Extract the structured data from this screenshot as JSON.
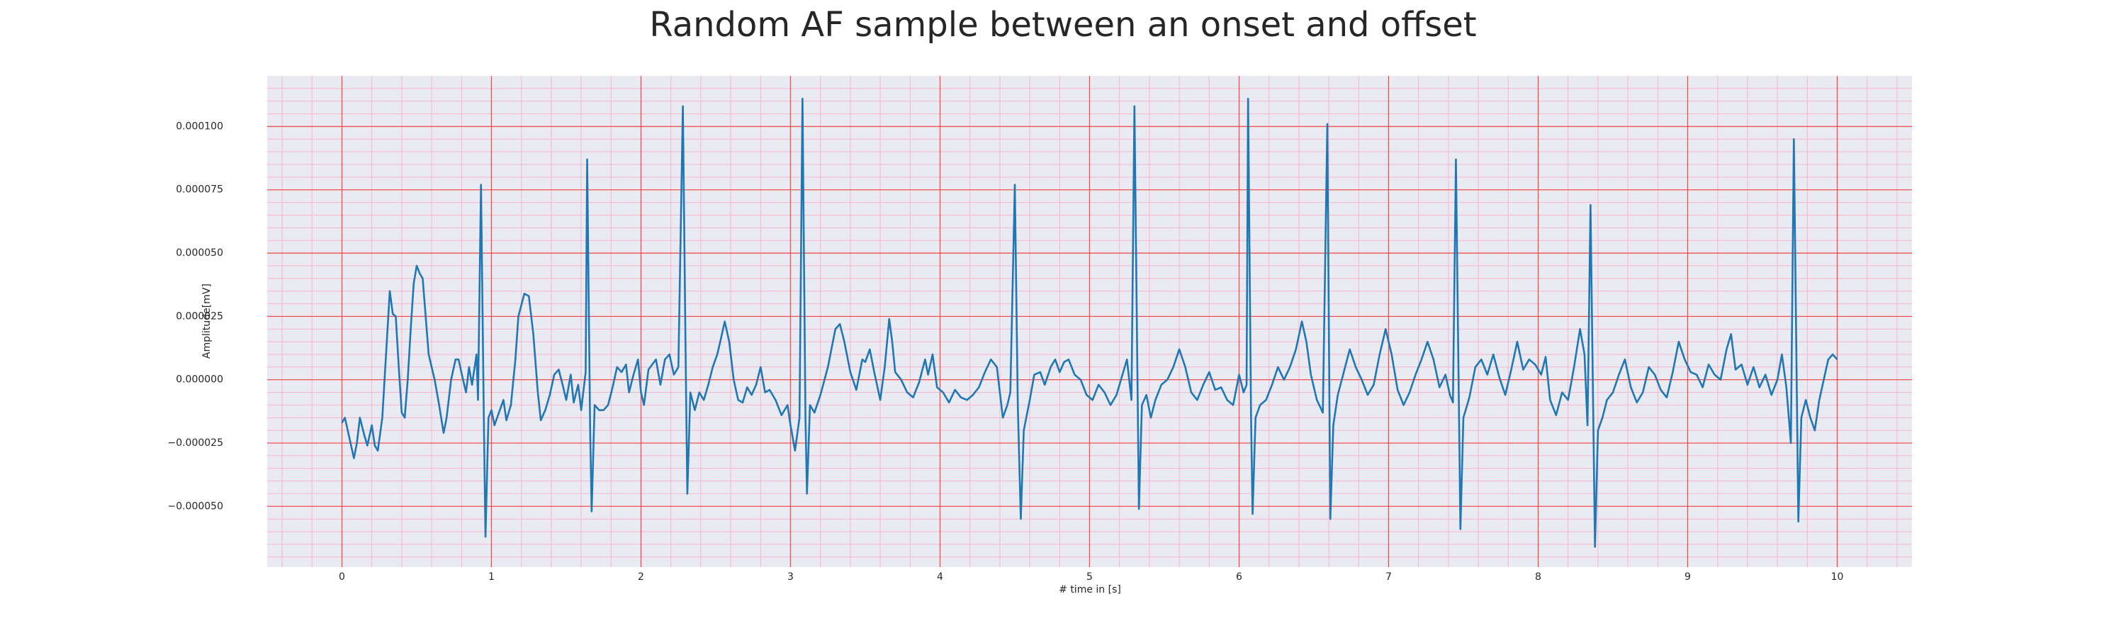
{
  "chart_data": {
    "type": "line",
    "title": "Random AF sample between an onset and offset",
    "xlabel": "# time in [s]",
    "ylabel": "Amplitude[mV]",
    "xlim": [
      -0.5,
      10.5
    ],
    "ylim": [
      -7.4e-05,
      0.00012
    ],
    "xticks": [
      0,
      1,
      2,
      3,
      4,
      5,
      6,
      7,
      8,
      9,
      10
    ],
    "yticks": [
      {
        "value": -5e-05,
        "label": "−0.000050"
      },
      {
        "value": -2.5e-05,
        "label": "−0.000025"
      },
      {
        "value": 0,
        "label": "0.000000"
      },
      {
        "value": 2.5e-05,
        "label": "0.000025"
      },
      {
        "value": 5e-05,
        "label": "0.000050"
      },
      {
        "value": 7.5e-05,
        "label": "0.000075"
      },
      {
        "value": 0.0001,
        "label": "0.000100"
      }
    ],
    "grid": true,
    "minor_grid": true,
    "background": "#eaeaf2",
    "grid_color": "#f05050",
    "minor_grid_color": "#f4b8c8",
    "x": [
      0,
      0.02,
      0.05,
      0.08,
      0.1,
      0.12,
      0.15,
      0.17,
      0.2,
      0.22,
      0.24,
      0.27,
      0.3,
      0.32,
      0.34,
      0.36,
      0.38,
      0.4,
      0.42,
      0.44,
      0.46,
      0.48,
      0.5,
      0.52,
      0.54,
      0.56,
      0.58,
      0.6,
      0.62,
      0.65,
      0.68,
      0.7,
      0.73,
      0.76,
      0.78,
      0.81,
      0.83,
      0.85,
      0.87,
      0.9,
      0.91,
      0.93,
      0.95,
      0.96,
      0.98,
      1.0,
      1.02,
      1.05,
      1.08,
      1.1,
      1.13,
      1.16,
      1.18,
      1.22,
      1.25,
      1.28,
      1.31,
      1.33,
      1.36,
      1.39,
      1.42,
      1.45,
      1.48,
      1.5,
      1.53,
      1.55,
      1.58,
      1.6,
      1.63,
      1.64,
      1.66,
      1.67,
      1.69,
      1.72,
      1.75,
      1.78,
      1.81,
      1.84,
      1.87,
      1.9,
      1.92,
      1.95,
      1.98,
      2.0,
      2.02,
      2.05,
      2.1,
      2.13,
      2.16,
      2.19,
      2.22,
      2.25,
      2.28,
      2.3,
      2.31,
      2.33,
      2.36,
      2.39,
      2.42,
      2.45,
      2.48,
      2.51,
      2.53,
      2.56,
      2.59,
      2.62,
      2.65,
      2.68,
      2.71,
      2.74,
      2.77,
      2.8,
      2.83,
      2.86,
      2.9,
      2.94,
      2.98,
      3.0,
      3.03,
      3.06,
      3.08,
      3.1,
      3.11,
      3.13,
      3.16,
      3.2,
      3.25,
      3.3,
      3.33,
      3.36,
      3.4,
      3.44,
      3.48,
      3.5,
      3.53,
      3.56,
      3.6,
      3.63,
      3.66,
      3.68,
      3.7,
      3.74,
      3.78,
      3.82,
      3.86,
      3.9,
      3.92,
      3.95,
      3.98,
      4.02,
      4.06,
      4.1,
      4.14,
      4.18,
      4.22,
      4.26,
      4.3,
      4.34,
      4.38,
      4.42,
      4.45,
      4.47,
      4.5,
      4.52,
      4.54,
      4.56,
      4.6,
      4.63,
      4.67,
      4.7,
      4.74,
      4.77,
      4.8,
      4.83,
      4.86,
      4.9,
      4.94,
      4.98,
      5.02,
      5.06,
      5.1,
      5.14,
      5.18,
      5.22,
      5.25,
      5.28,
      5.3,
      5.33,
      5.35,
      5.38,
      5.41,
      5.44,
      5.48,
      5.52,
      5.56,
      5.6,
      5.64,
      5.68,
      5.72,
      5.76,
      5.8,
      5.84,
      5.88,
      5.92,
      5.96,
      6.0,
      6.03,
      6.05,
      6.06,
      6.08,
      6.09,
      6.11,
      6.14,
      6.18,
      6.22,
      6.26,
      6.3,
      6.34,
      6.38,
      6.42,
      6.45,
      6.48,
      6.52,
      6.56,
      6.59,
      6.61,
      6.63,
      6.66,
      6.7,
      6.74,
      6.78,
      6.82,
      6.86,
      6.9,
      6.94,
      6.98,
      7.02,
      7.06,
      7.1,
      7.14,
      7.18,
      7.22,
      7.26,
      7.3,
      7.34,
      7.38,
      7.41,
      7.43,
      7.45,
      7.48,
      7.5,
      7.54,
      7.58,
      7.62,
      7.66,
      7.7,
      7.74,
      7.78,
      7.82,
      7.86,
      7.9,
      7.94,
      7.98,
      8.02,
      8.05,
      8.08,
      8.12,
      8.16,
      8.2,
      8.24,
      8.28,
      8.31,
      8.33,
      8.35,
      8.38,
      8.4,
      8.43,
      8.46,
      8.5,
      8.54,
      8.58,
      8.62,
      8.66,
      8.7,
      8.74,
      8.78,
      8.82,
      8.86,
      8.9,
      8.94,
      8.98,
      9.02,
      9.06,
      9.1,
      9.14,
      9.18,
      9.22,
      9.26,
      9.29,
      9.32,
      9.36,
      9.4,
      9.44,
      9.48,
      9.52,
      9.56,
      9.6,
      9.63,
      9.66,
      9.69,
      9.71,
      9.74,
      9.76,
      9.79,
      9.82,
      9.85,
      9.88,
      9.91,
      9.94,
      9.97,
      10.0
    ],
    "series": [
      {
        "color": "#1f77b4",
        "values": [
          -1.7e-05,
          -1.5e-05,
          -2.3e-05,
          -3.1e-05,
          -2.5e-05,
          -1.5e-05,
          -2.2e-05,
          -2.6e-05,
          -1.8e-05,
          -2.6e-05,
          -2.8e-05,
          -1.5e-05,
          1.5e-05,
          3.5e-05,
          2.6e-05,
          2.5e-05,
          5e-06,
          -1.3e-05,
          -1.5e-05,
          0,
          2e-05,
          3.8e-05,
          4.5e-05,
          4.2e-05,
          4e-05,
          2.5e-05,
          1e-05,
          5e-06,
          0,
          -1e-05,
          -2.1e-05,
          -1.5e-05,
          0,
          8e-06,
          8e-06,
          0,
          -5e-06,
          5e-06,
          -2e-06,
          1e-05,
          -8e-06,
          7.7e-05,
          -2e-05,
          -6.2e-05,
          -1.5e-05,
          -1.2e-05,
          -1.8e-05,
          -1.3e-05,
          -8e-06,
          -1.6e-05,
          -1e-05,
          8e-06,
          2.5e-05,
          3.4e-05,
          3.3e-05,
          1.8e-05,
          -5e-06,
          -1.6e-05,
          -1.2e-05,
          -6e-06,
          2e-06,
          4e-06,
          -3e-06,
          -8e-06,
          2e-06,
          -9e-06,
          -2e-06,
          -1.2e-05,
          3e-06,
          8.7e-05,
          -2e-05,
          -5.2e-05,
          -1e-05,
          -1.2e-05,
          -1.2e-05,
          -1e-05,
          -3e-06,
          5e-06,
          3e-06,
          6e-06,
          -5e-06,
          2e-06,
          8e-06,
          -5e-06,
          -1e-05,
          4e-06,
          8e-06,
          -2e-06,
          8e-06,
          1e-05,
          2e-06,
          5e-06,
          0.000108,
          2e-06,
          -4.5e-05,
          -5e-06,
          -1.2e-05,
          -5e-06,
          -8e-06,
          -2e-06,
          5e-06,
          1e-05,
          1.5e-05,
          2.3e-05,
          1.5e-05,
          0,
          -8e-06,
          -9e-06,
          -3e-06,
          -6e-06,
          -2e-06,
          5e-06,
          -5e-06,
          -4e-06,
          -8e-06,
          -1.4e-05,
          -1e-05,
          -1.8e-05,
          -2.8e-05,
          -1.5e-05,
          0.000111,
          -1.5e-05,
          -4.5e-05,
          -1e-05,
          -1.3e-05,
          -6e-06,
          5e-06,
          2e-05,
          2.2e-05,
          1.5e-05,
          3e-06,
          -4e-06,
          8e-06,
          7e-06,
          1.2e-05,
          3e-06,
          -8e-06,
          5e-06,
          2.4e-05,
          1.5e-05,
          3e-06,
          0,
          -5e-06,
          -7e-06,
          -1e-06,
          8e-06,
          2e-06,
          1e-05,
          -3e-06,
          -5e-06,
          -9e-06,
          -4e-06,
          -7e-06,
          -8e-06,
          -6e-06,
          -3e-06,
          3e-06,
          8e-06,
          5e-06,
          -1.5e-05,
          -1e-05,
          -5e-06,
          7.7e-05,
          -1e-05,
          -5.5e-05,
          -2e-05,
          -8e-06,
          2e-06,
          3e-06,
          -2e-06,
          5e-06,
          8e-06,
          3e-06,
          7e-06,
          8e-06,
          2e-06,
          0,
          -6e-06,
          -8e-06,
          -2e-06,
          -5e-06,
          -1e-05,
          -6e-06,
          2e-06,
          8e-06,
          -8e-06,
          0.000108,
          -5.1e-05,
          -1e-05,
          -6e-06,
          -1.5e-05,
          -8e-06,
          -2e-06,
          0,
          5e-06,
          1.2e-05,
          5e-06,
          -5e-06,
          -8e-06,
          -2e-06,
          3e-06,
          -4e-06,
          -3e-06,
          -8e-06,
          -1e-05,
          2e-06,
          -5e-06,
          -2e-06,
          0.000111,
          -1.5e-05,
          -5.3e-05,
          -1.5e-05,
          -1e-05,
          -8e-06,
          -2e-06,
          5e-06,
          0,
          5e-06,
          1.2e-05,
          2.3e-05,
          1.5e-05,
          2e-06,
          -8e-06,
          -1.3e-05,
          0.000101,
          -5.5e-05,
          -1.8e-05,
          -6e-06,
          3e-06,
          1.2e-05,
          5e-06,
          0,
          -6e-06,
          -2e-06,
          1e-05,
          2e-05,
          1e-05,
          -4e-06,
          -1e-05,
          -5e-06,
          2e-06,
          8e-06,
          1.5e-05,
          8e-06,
          -3e-06,
          2e-06,
          -6e-06,
          -9e-06,
          8.7e-05,
          -5.9e-05,
          -1.5e-05,
          -7e-06,
          5e-06,
          8e-06,
          2e-06,
          1e-05,
          1e-06,
          -6e-06,
          4e-06,
          1.5e-05,
          4e-06,
          8e-06,
          6e-06,
          2e-06,
          9e-06,
          -8e-06,
          -1.4e-05,
          -5e-06,
          -8e-06,
          5e-06,
          2e-05,
          1e-05,
          -1.8e-05,
          6.9e-05,
          -6.6e-05,
          -2e-05,
          -1.5e-05,
          -8e-06,
          -5e-06,
          2e-06,
          8e-06,
          -3e-06,
          -9e-06,
          -5e-06,
          5e-06,
          2e-06,
          -4e-06,
          -7e-06,
          3e-06,
          1.5e-05,
          8e-06,
          3e-06,
          2e-06,
          -3e-06,
          6e-06,
          2e-06,
          0,
          1.2e-05,
          1.8e-05,
          4e-06,
          6e-06,
          -2e-06,
          5e-06,
          -3e-06,
          2e-06,
          -6e-06,
          0,
          1e-05,
          -3e-06,
          -2.5e-05,
          9.5e-05,
          -5.6e-05,
          -1.5e-05,
          -8e-06,
          -1.5e-05,
          -2e-05,
          -8e-06,
          0,
          8e-06,
          1e-05,
          8e-06
        ]
      }
    ]
  }
}
